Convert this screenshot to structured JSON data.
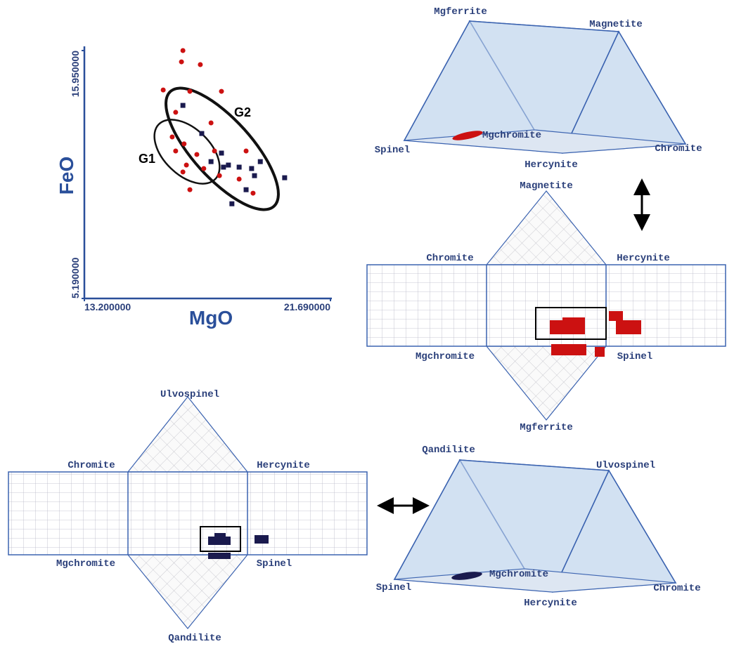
{
  "chart_data": {
    "type": "scatter",
    "xlabel": "MgO",
    "ylabel": "FeO",
    "xlim": [
      13.2,
      21.69
    ],
    "ylim": [
      5.19,
      15.95
    ],
    "xticks": [
      {
        "value": 13.2,
        "label": "13.200000"
      },
      {
        "value": 21.69,
        "label": "21.690000"
      }
    ],
    "yticks": [
      {
        "value": 5.19,
        "label": "5.190000"
      },
      {
        "value": 15.95,
        "label": "15.950000"
      }
    ],
    "series": [
      {
        "color": "#cc1111",
        "marker": "circle",
        "x": [
          16.6,
          16.55,
          17.2,
          15.92,
          16.84,
          17.93,
          16.35,
          17.57,
          16.23,
          16.64,
          17.08,
          16.35,
          17.69,
          18.78,
          16.72,
          17.32,
          16.6,
          17.86,
          18.54,
          19.02,
          16.84
        ],
        "values": [
          15.95,
          15.46,
          15.34,
          14.24,
          14.18,
          14.18,
          13.27,
          12.81,
          12.2,
          11.9,
          11.44,
          11.59,
          11.59,
          11.59,
          10.98,
          10.83,
          10.68,
          10.52,
          10.37,
          9.76,
          9.91
        ]
      },
      {
        "color": "#1a1a4e",
        "marker": "square",
        "x": [
          16.6,
          17.25,
          17.93,
          18.17,
          18.0,
          18.54,
          18.97,
          19.27,
          19.07,
          20.11,
          18.78,
          18.29,
          17.57
        ],
        "values": [
          13.57,
          12.35,
          11.5,
          10.98,
          10.89,
          10.89,
          10.83,
          11.13,
          10.52,
          10.43,
          9.91,
          9.3,
          11.13
        ]
      }
    ],
    "annotations": [
      "G1",
      "G2"
    ]
  },
  "prism_top": {
    "labels": [
      "Mgferrite",
      "Magnetite",
      "Spinel",
      "Mgchromite",
      "Hercynite",
      "Chromite"
    ]
  },
  "net_top": {
    "labels": [
      "Magnetite",
      "Chromite",
      "Hercynite",
      "Mgchromite",
      "Spinel",
      "Mgferrite"
    ]
  },
  "net_bottom": {
    "labels": [
      "Ulvospinel",
      "Chromite",
      "Hercynite",
      "Mgchromite",
      "Spinel",
      "Qandilite"
    ]
  },
  "prism_bottom": {
    "labels": [
      "Qandilite",
      "Ulvospinel",
      "Spinel",
      "Mgchromite",
      "Hercynite",
      "Chromite"
    ]
  }
}
